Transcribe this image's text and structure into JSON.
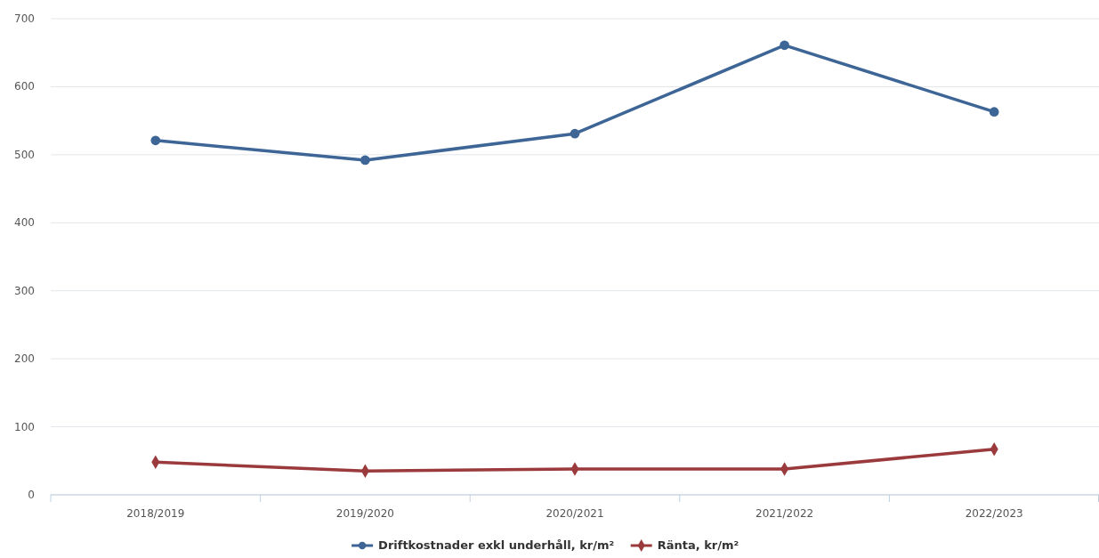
{
  "chart_data": {
    "type": "line",
    "categories": [
      "2018/2019",
      "2019/2020",
      "2020/2021",
      "2021/2022",
      "2022/2023"
    ],
    "series": [
      {
        "name": "Driftkostnader exkl underhåll, kr/m²",
        "color": "#3d6596",
        "marker": "circle",
        "values": [
          521,
          492,
          531,
          661,
          563
        ]
      },
      {
        "name": "Ränta, kr/m²",
        "color": "#9b3a3c",
        "marker": "diamond",
        "values": [
          48,
          35,
          38,
          38,
          67
        ]
      }
    ],
    "ylim": [
      0,
      700
    ],
    "yticks": [
      0,
      100,
      200,
      300,
      400,
      500,
      600,
      700
    ],
    "grid": "y",
    "legend": "bottom"
  }
}
